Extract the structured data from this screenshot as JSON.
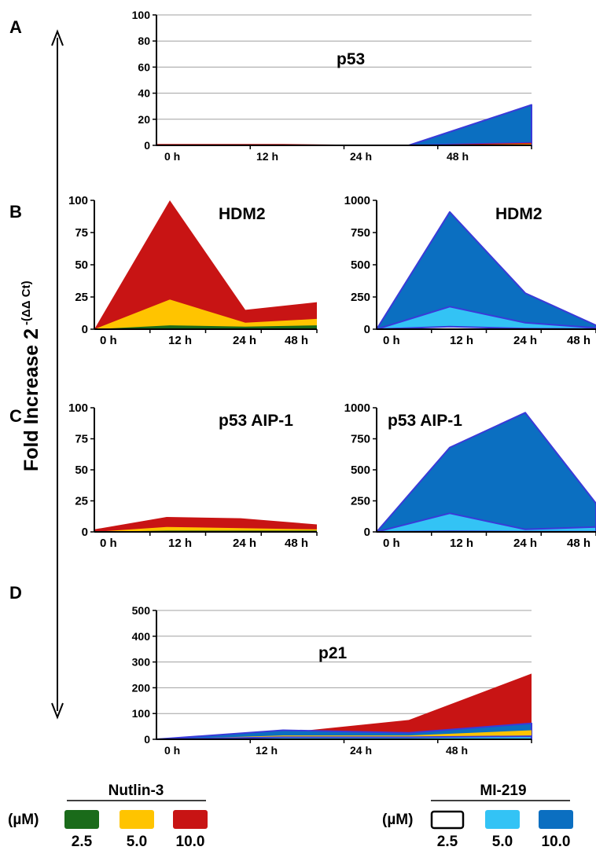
{
  "panel_letters": [
    "A",
    "B",
    "C",
    "D"
  ],
  "shared_ylabel": {
    "main": "Fold Increase 2",
    "sup": "-(ΔΔ Ct)"
  },
  "legend": {
    "unit": "(µM)",
    "nutlin": {
      "title": "Nutlin-3",
      "items": [
        {
          "label": "2.5",
          "color": "#1a6b1a"
        },
        {
          "label": "5.0",
          "color": "#ffc400"
        },
        {
          "label": "10.0",
          "color": "#c81414"
        }
      ]
    },
    "mi": {
      "title": "MI-219",
      "items": [
        {
          "label": "2.5",
          "color": "#ffffff"
        },
        {
          "label": "5.0",
          "color": "#33c3f5"
        },
        {
          "label": "10.0",
          "color": "#0b6fc1"
        }
      ]
    }
  },
  "colors": {
    "nutlin_2_5": "#1a6b1a",
    "nutlin_5_0": "#ffc400",
    "nutlin_10_0": "#c81414",
    "mi_5_0": "#33c3f5",
    "mi_10_0": "#0b6fc1",
    "mi_outline": "#3a3ad8",
    "grid": "#a0a0a0"
  },
  "chart_data": [
    {
      "type": "area",
      "panel": "A",
      "title": "p53",
      "categories": [
        "0 h",
        "12 h",
        "24 h",
        "48 h"
      ],
      "ylim": [
        0,
        100
      ],
      "yticks": [
        0,
        20,
        40,
        60,
        80,
        100
      ],
      "grid": true,
      "series": [
        {
          "group": "MI-219",
          "conc": "10.0",
          "values": [
            0,
            0,
            0,
            31
          ]
        },
        {
          "group": "MI-219",
          "conc": "5.0",
          "values": [
            0,
            0,
            0,
            2
          ]
        },
        {
          "group": "Nutlin-3",
          "conc": "10.0",
          "values": [
            1,
            1,
            0,
            2
          ]
        },
        {
          "group": "Nutlin-3",
          "conc": "5.0",
          "values": [
            0.5,
            0.5,
            0,
            1
          ]
        },
        {
          "group": "Nutlin-3",
          "conc": "2.5",
          "values": [
            0.2,
            0.2,
            0,
            0.3
          ]
        }
      ]
    },
    {
      "type": "area",
      "panel": "B-left",
      "title": "HDM2",
      "categories": [
        "0 h",
        "12 h",
        "24 h",
        "48 h"
      ],
      "ylim": [
        0,
        100
      ],
      "yticks": [
        0,
        25,
        50,
        75,
        100
      ],
      "grid": false,
      "series": [
        {
          "group": "Nutlin-3",
          "conc": "10.0",
          "values": [
            0,
            100,
            15,
            21
          ]
        },
        {
          "group": "Nutlin-3",
          "conc": "5.0",
          "values": [
            0,
            23,
            5,
            8
          ]
        },
        {
          "group": "Nutlin-3",
          "conc": "2.5",
          "values": [
            0,
            3,
            2,
            3
          ]
        }
      ]
    },
    {
      "type": "area",
      "panel": "B-right",
      "title": "HDM2",
      "categories": [
        "0 h",
        "12 h",
        "24 h",
        "48 h"
      ],
      "ylim": [
        0,
        1000
      ],
      "yticks": [
        0,
        250,
        500,
        750,
        1000
      ],
      "grid": false,
      "series": [
        {
          "group": "MI-219",
          "conc": "10.0",
          "values": [
            0,
            910,
            280,
            30
          ]
        },
        {
          "group": "MI-219",
          "conc": "5.0",
          "values": [
            0,
            175,
            50,
            10
          ]
        },
        {
          "group": "MI-219",
          "conc": "2.5",
          "values": [
            0,
            20,
            5,
            2
          ]
        }
      ]
    },
    {
      "type": "area",
      "panel": "C-left",
      "title": "p53 AIP-1",
      "categories": [
        "0 h",
        "12 h",
        "24 h",
        "48 h"
      ],
      "ylim": [
        0,
        100
      ],
      "yticks": [
        0,
        25,
        50,
        75,
        100
      ],
      "grid": false,
      "series": [
        {
          "group": "Nutlin-3",
          "conc": "10.0",
          "values": [
            2,
            12,
            11,
            6
          ]
        },
        {
          "group": "Nutlin-3",
          "conc": "5.0",
          "values": [
            0,
            4,
            3,
            2
          ]
        },
        {
          "group": "Nutlin-3",
          "conc": "2.5",
          "values": [
            0,
            1,
            1,
            1
          ]
        }
      ]
    },
    {
      "type": "area",
      "panel": "C-right",
      "title": "p53 AIP-1",
      "categories": [
        "0 h",
        "12 h",
        "24 h",
        "48 h"
      ],
      "ylim": [
        0,
        1000
      ],
      "yticks": [
        0,
        250,
        500,
        750,
        1000
      ],
      "grid": false,
      "series": [
        {
          "group": "MI-219",
          "conc": "10.0",
          "values": [
            0,
            680,
            960,
            230
          ]
        },
        {
          "group": "MI-219",
          "conc": "5.0",
          "values": [
            0,
            150,
            20,
            40
          ]
        },
        {
          "group": "MI-219",
          "conc": "2.5",
          "values": [
            0,
            5,
            2,
            2
          ]
        }
      ]
    },
    {
      "type": "area",
      "panel": "D",
      "title": "p21",
      "categories": [
        "0 h",
        "12 h",
        "24 h",
        "48 h"
      ],
      "ylim": [
        0,
        500
      ],
      "yticks": [
        0,
        100,
        200,
        300,
        400,
        500
      ],
      "grid": true,
      "series": [
        {
          "group": "Nutlin-3",
          "conc": "10.0",
          "values": [
            0,
            25,
            75,
            255
          ]
        },
        {
          "group": "MI-219",
          "conc": "10.0",
          "values": [
            0,
            35,
            25,
            62
          ]
        },
        {
          "group": "Nutlin-3",
          "conc": "5.0",
          "values": [
            0,
            15,
            15,
            35
          ]
        },
        {
          "group": "MI-219",
          "conc": "5.0",
          "values": [
            0,
            8,
            8,
            12
          ]
        }
      ]
    }
  ]
}
